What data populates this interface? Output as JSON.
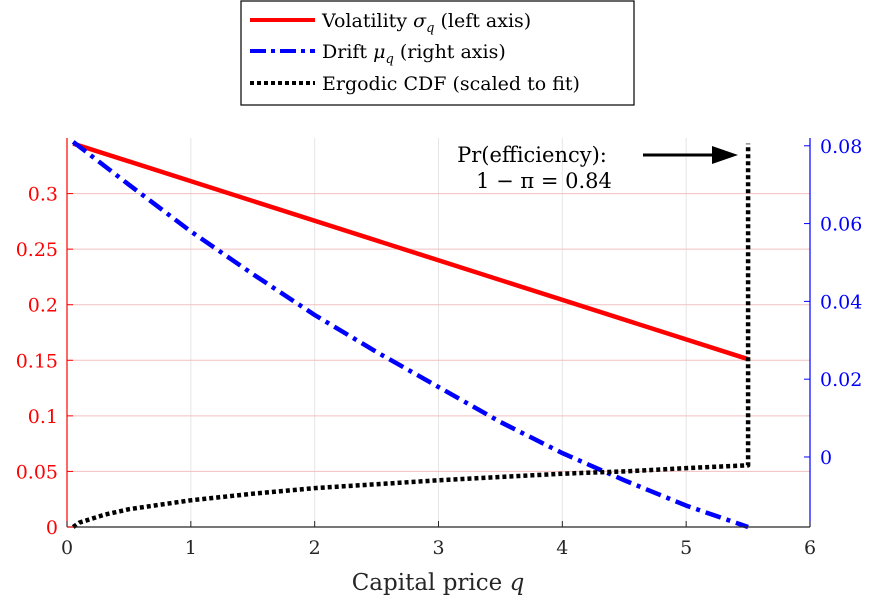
{
  "colors": {
    "volatility": "#ff0000",
    "drift": "#0000ff",
    "cdf": "#000000",
    "left_axis": "#ff0000",
    "right_axis": "#0000ff",
    "grid_left": "#f2c0c0",
    "grid_x": "#e6e6e6"
  },
  "chart_data": {
    "type": "line",
    "xlabel": "Capital price q",
    "xlim": [
      0,
      6
    ],
    "x_ticks": [
      "0",
      "1",
      "2",
      "3",
      "4",
      "5",
      "6"
    ],
    "left_axis": {
      "ylim": [
        0,
        0.35
      ],
      "ticks": [
        "0",
        "0.05",
        "0.1",
        "0.15",
        "0.2",
        "0.25",
        "0.3"
      ]
    },
    "right_axis": {
      "ylim": [
        -0.018,
        0.082
      ],
      "ticks": [
        "0",
        "0.02",
        "0.04",
        "0.06",
        "0.08"
      ]
    },
    "grid": true,
    "legend_position": "top-center",
    "legend": [
      {
        "key": "volatility",
        "text": "Volatility σ_q (left axis)"
      },
      {
        "key": "drift",
        "text": "Drift μ_q (right axis)"
      },
      {
        "key": "cdf",
        "text": "Ergodic CDF (scaled to fit)"
      }
    ],
    "series": [
      {
        "key": "volatility",
        "axis": "left",
        "style": "solid",
        "x": [
          0.05,
          5.5
        ],
        "y": [
          0.345,
          0.151
        ]
      },
      {
        "key": "drift",
        "axis": "right",
        "style": "dashdot",
        "x": [
          0.05,
          0.5,
          1,
          1.5,
          2,
          2.5,
          3,
          3.5,
          4,
          4.5,
          5,
          5.5
        ],
        "y": [
          0.081,
          0.07,
          0.058,
          0.047,
          0.0365,
          0.027,
          0.018,
          0.009,
          0.001,
          -0.006,
          -0.0125,
          -0.018
        ]
      },
      {
        "key": "cdf",
        "axis": "left",
        "style": "dotted",
        "x": [
          0.05,
          0.1,
          0.3,
          0.5,
          1,
          1.5,
          2,
          2.5,
          3,
          3.5,
          4,
          4.5,
          5,
          5.5,
          5.5
        ],
        "y": [
          0.0,
          0.004,
          0.011,
          0.016,
          0.024,
          0.03,
          0.035,
          0.0385,
          0.042,
          0.045,
          0.048,
          0.05,
          0.053,
          0.0555,
          0.345
        ]
      }
    ],
    "annotation": {
      "line1": "Pr(efficiency):",
      "line2": "1 − π = 0.84",
      "arrow_to_x": 5.5,
      "arrow_y": 0.33
    }
  }
}
